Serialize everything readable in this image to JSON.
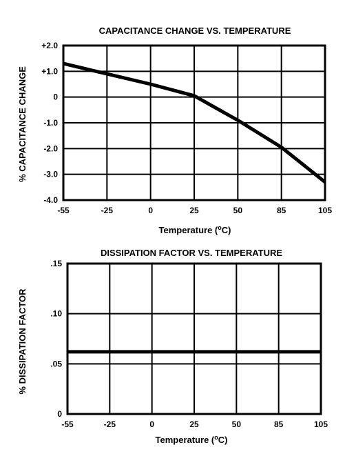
{
  "chart_data": [
    {
      "type": "line",
      "title": "CAPACITANCE CHANGE VS. TEMPERATURE",
      "xlabel_prefix": "Temperature (",
      "xlabel_sup": "o",
      "xlabel_suffix": "C)",
      "ylabel": "% CAPACITANCE CHANGE",
      "x_ticks": [
        "-55",
        "-25",
        "0",
        "25",
        "50",
        "85",
        "105"
      ],
      "y_ticks": [
        "+2.0",
        "+1.0",
        "0",
        "-1.0",
        "-2.0",
        "-3.0",
        "-4.0"
      ],
      "y_tick_values": [
        2,
        1,
        0,
        -1,
        -2,
        -3,
        -4
      ],
      "ylim": [
        -4,
        2
      ],
      "grid": true,
      "series": [
        {
          "x": [
            "-55",
            "-25",
            "0",
            "25",
            "50",
            "85",
            "105"
          ],
          "values": [
            1.3,
            0.9,
            0.5,
            0.05,
            -0.9,
            -1.95,
            -3.3
          ]
        }
      ]
    },
    {
      "type": "line",
      "title": "DISSIPATION FACTOR VS. TEMPERATURE",
      "xlabel_prefix": "Temperature (",
      "xlabel_sup": "o",
      "xlabel_suffix": "C)",
      "ylabel": "% DISSIPATION FACTOR",
      "x_ticks": [
        "-55",
        "-25",
        "0",
        "25",
        "50",
        "85",
        "105"
      ],
      "y_ticks": [
        ".15",
        ".10",
        ".05",
        "0"
      ],
      "y_tick_values": [
        0.15,
        0.1,
        0.05,
        0
      ],
      "ylim": [
        0,
        0.15
      ],
      "grid": true,
      "series": [
        {
          "x": [
            "-55",
            "-25",
            "0",
            "25",
            "50",
            "85",
            "105"
          ],
          "values": [
            0.062,
            0.062,
            0.062,
            0.062,
            0.062,
            0.062,
            0.062
          ]
        }
      ]
    }
  ]
}
